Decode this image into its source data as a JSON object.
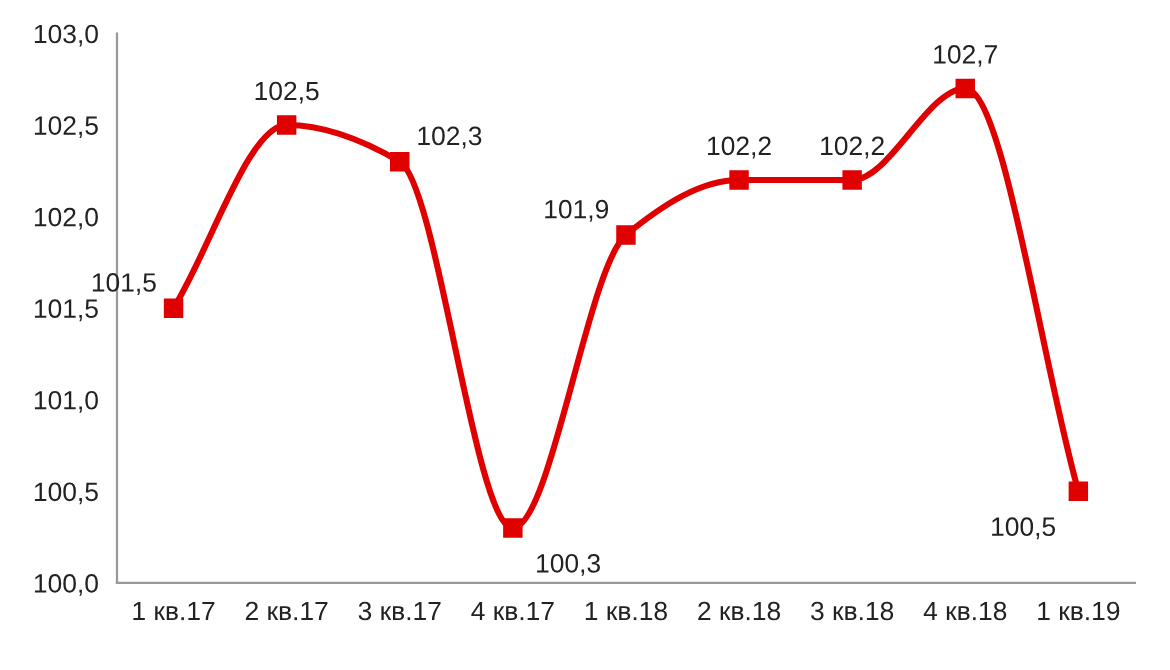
{
  "chart_data": {
    "type": "line",
    "categories": [
      "1 кв.17",
      "2 кв.17",
      "3 кв.17",
      "4 кв.17",
      "1 кв.18",
      "2 кв.18",
      "3 кв.18",
      "4 кв.18",
      "1 кв.19"
    ],
    "series": [
      {
        "color": "#e00000",
        "values": [
          101.5,
          102.5,
          102.3,
          100.3,
          101.9,
          102.2,
          102.2,
          102.7,
          100.5
        ],
        "value_labels": [
          "101,5",
          "102,5",
          "102,3",
          "100,3",
          "101,9",
          "102,2",
          "102,2",
          "102,7",
          "100,5"
        ]
      }
    ],
    "ylim": [
      100.0,
      103.0
    ],
    "yticks": [
      {
        "value": 100.0,
        "label": "100,0"
      },
      {
        "value": 100.5,
        "label": "100,5"
      },
      {
        "value": 101.0,
        "label": "101,0"
      },
      {
        "value": 101.5,
        "label": "101,5"
      },
      {
        "value": 102.0,
        "label": "102,0"
      },
      {
        "value": 102.5,
        "label": "102,5"
      },
      {
        "value": 103.0,
        "label": "103,0"
      }
    ],
    "marker": "square",
    "line_style": "solid",
    "grid": false,
    "legend": false
  }
}
